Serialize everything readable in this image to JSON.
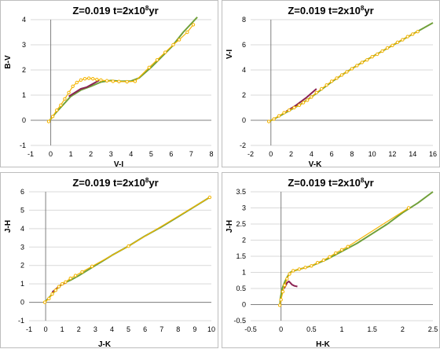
{
  "figure": {
    "background": "#ffffff",
    "panel_border": "#bdbdbd"
  },
  "colors": {
    "model_a": "#70a03a",
    "model_b": "#8b2252",
    "marker": "#f4b400",
    "grid": "#d9d9d9"
  },
  "chart_data": [
    {
      "type": "line",
      "title_main": "Z=0.019   t=2x10",
      "title_exp": "8",
      "title_unit": "yr",
      "xlabel": "V-I",
      "ylabel": "B-V",
      "xlim": [
        -1,
        8
      ],
      "ylim": [
        -1,
        4
      ],
      "xticks": [
        "-1",
        "0",
        "1",
        "2",
        "3",
        "4",
        "5",
        "6",
        "7",
        "8"
      ],
      "yticks": [
        "-1",
        "0",
        "1",
        "2",
        "3",
        "4"
      ],
      "grid": "horizontal",
      "series": [
        {
          "color": "#70a03a",
          "x": [
            -0.1,
            0.2,
            0.6,
            1.0,
            1.5,
            2.0,
            2.5,
            3.0,
            3.5,
            4.0,
            4.4,
            5.0,
            5.5,
            6.0,
            6.6,
            7.3
          ],
          "y": [
            -0.05,
            0.25,
            0.6,
            0.95,
            1.2,
            1.35,
            1.52,
            1.58,
            1.55,
            1.56,
            1.68,
            2.1,
            2.5,
            2.9,
            3.5,
            4.1
          ]
        },
        {
          "color": "#8b2252",
          "x": [
            0.9,
            1.2,
            1.5,
            1.8,
            2.1,
            2.4
          ],
          "y": [
            0.95,
            1.1,
            1.25,
            1.32,
            1.45,
            1.58
          ]
        },
        {
          "color": "#f4b400",
          "markers": true,
          "x": [
            -0.1,
            0.1,
            0.3,
            0.5,
            0.7,
            0.9,
            1.1,
            1.3,
            1.5,
            1.7,
            1.9,
            2.1,
            2.3,
            2.5,
            2.8,
            3.1,
            3.4,
            3.8,
            4.2,
            4.9,
            5.3,
            5.7,
            6.1,
            6.4,
            6.8,
            7.1
          ],
          "y": [
            -0.05,
            0.15,
            0.4,
            0.6,
            0.85,
            1.1,
            1.35,
            1.5,
            1.6,
            1.65,
            1.67,
            1.65,
            1.62,
            1.6,
            1.57,
            1.55,
            1.54,
            1.53,
            1.55,
            2.1,
            2.4,
            2.7,
            3.0,
            3.2,
            3.5,
            3.8
          ]
        }
      ]
    },
    {
      "type": "line",
      "title_main": "Z=0.019   t=2x10",
      "title_exp": "8",
      "title_unit": "yr",
      "xlabel": "V-K",
      "ylabel": "V-I",
      "xlim": [
        -2,
        16
      ],
      "ylim": [
        -2,
        8
      ],
      "xticks": [
        "-2",
        "0",
        "2",
        "4",
        "6",
        "8",
        "10",
        "12",
        "14",
        "16"
      ],
      "yticks": [
        "-2",
        "0",
        "2",
        "4",
        "6",
        "8"
      ],
      "grid": "horizontal",
      "series": [
        {
          "color": "#70a03a",
          "x": [
            -0.3,
            1.0,
            2.0,
            3.0,
            4.0,
            5.0,
            6.0,
            7.0,
            8.0,
            9.0,
            10.0,
            11.0,
            12.0,
            13.0,
            14.0,
            15.0,
            16.0
          ],
          "y": [
            -0.15,
            0.4,
            0.85,
            1.3,
            1.85,
            2.45,
            3.05,
            3.6,
            4.1,
            4.6,
            5.05,
            5.5,
            5.95,
            6.4,
            6.85,
            7.3,
            7.75
          ]
        },
        {
          "color": "#8b2252",
          "x": [
            1.5,
            2.0,
            2.5,
            3.0,
            3.5,
            4.0,
            4.5
          ],
          "y": [
            0.7,
            0.95,
            1.2,
            1.5,
            1.8,
            2.15,
            2.5
          ]
        },
        {
          "color": "#f4b400",
          "markers": true,
          "x": [
            -0.2,
            0.3,
            0.8,
            1.3,
            1.8,
            2.3,
            2.8,
            3.2,
            3.6,
            4.0,
            4.5,
            5.0,
            5.5,
            6.0,
            6.5,
            7.0,
            7.5,
            8.0,
            8.5,
            9.0,
            9.5,
            10.0,
            10.5,
            11.0,
            11.5,
            12.0,
            12.5,
            13.0,
            13.5,
            14.0,
            14.5
          ],
          "y": [
            -0.1,
            0.1,
            0.35,
            0.6,
            0.8,
            1.0,
            1.2,
            1.4,
            1.6,
            1.85,
            2.2,
            2.5,
            2.8,
            3.1,
            3.35,
            3.6,
            3.85,
            4.1,
            4.35,
            4.6,
            4.8,
            5.05,
            5.25,
            5.5,
            5.75,
            5.95,
            6.2,
            6.4,
            6.65,
            6.85,
            7.05
          ]
        }
      ]
    },
    {
      "type": "line",
      "title_main": "Z=0.019   t=2x10",
      "title_exp": "8",
      "title_unit": "yr",
      "xlabel": "J-K",
      "ylabel": "J-H",
      "xlim": [
        -1,
        10
      ],
      "ylim": [
        -1,
        6
      ],
      "xticks": [
        "-1",
        "0",
        "1",
        "2",
        "3",
        "4",
        "5",
        "6",
        "7",
        "8",
        "9",
        "10"
      ],
      "yticks": [
        "-1",
        "0",
        "1",
        "2",
        "3",
        "4",
        "5",
        "6"
      ],
      "grid": "horizontal",
      "series": [
        {
          "color": "#70a03a",
          "x": [
            -0.1,
            0.3,
            0.7,
            1.0,
            1.5,
            2.0,
            3.0,
            4.0,
            5.0,
            6.0,
            7.0,
            8.0,
            9.0,
            9.9
          ],
          "y": [
            -0.05,
            0.35,
            0.75,
            1.0,
            1.2,
            1.45,
            2.0,
            2.55,
            3.05,
            3.6,
            4.1,
            4.65,
            5.2,
            5.7
          ]
        },
        {
          "color": "#8b2252",
          "x": [
            0.4,
            0.6,
            0.8,
            1.0,
            1.2
          ],
          "y": [
            0.55,
            0.7,
            0.85,
            1.0,
            1.05
          ]
        },
        {
          "color": "#f4b400",
          "markers": true,
          "x": [
            -0.05,
            0.2,
            0.4,
            0.6,
            0.8,
            1.0,
            1.2,
            1.5,
            1.8,
            2.2,
            2.8,
            5.0,
            9.9
          ],
          "y": [
            0.0,
            0.2,
            0.45,
            0.65,
            0.85,
            1.0,
            1.1,
            1.3,
            1.45,
            1.65,
            1.95,
            3.05,
            5.7
          ]
        }
      ]
    },
    {
      "type": "line",
      "title_main": "Z=0.019   t=2x10",
      "title_exp": "8",
      "title_unit": "yr",
      "xlabel": "H-K",
      "ylabel": "J-H",
      "xlim": [
        -0.5,
        2.5
      ],
      "ylim": [
        -0.5,
        3.5
      ],
      "xticks": [
        "-0.5",
        "0",
        "0.5",
        "1",
        "1.5",
        "2",
        "2.5"
      ],
      "yticks": [
        "-0.5",
        "0",
        "0.5",
        "1",
        "1.5",
        "2",
        "2.5",
        "3",
        "3.5"
      ],
      "grid": "horizontal",
      "series": [
        {
          "color": "#70a03a",
          "x": [
            -0.02,
            -0.01,
            0.02,
            0.06,
            0.1,
            0.15,
            0.25,
            0.5,
            0.75,
            1.0,
            1.25,
            1.5,
            1.75,
            2.0,
            2.25,
            2.5
          ],
          "y": [
            -0.05,
            0.2,
            0.5,
            0.7,
            0.85,
            1.0,
            1.07,
            1.2,
            1.4,
            1.65,
            1.9,
            2.2,
            2.5,
            2.85,
            3.15,
            3.5
          ]
        },
        {
          "color": "#8b2252",
          "x": [
            0.05,
            0.08,
            0.1,
            0.13,
            0.15,
            0.18,
            0.22,
            0.27
          ],
          "y": [
            0.5,
            0.6,
            0.68,
            0.72,
            0.68,
            0.62,
            0.58,
            0.56
          ]
        },
        {
          "color": "#f4b400",
          "markers": true,
          "x": [
            -0.02,
            0.0,
            0.03,
            0.06,
            0.1,
            0.14,
            0.2,
            0.3,
            0.4,
            0.5,
            0.6,
            0.7,
            0.8,
            0.9,
            1.0,
            1.1,
            2.1
          ],
          "y": [
            -0.02,
            0.15,
            0.4,
            0.6,
            0.8,
            0.95,
            1.05,
            1.1,
            1.15,
            1.2,
            1.3,
            1.38,
            1.48,
            1.6,
            1.7,
            1.8,
            3.0
          ]
        }
      ]
    }
  ]
}
